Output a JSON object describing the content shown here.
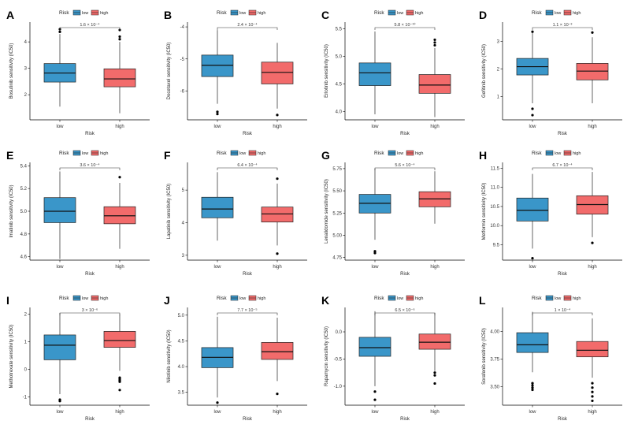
{
  "legend": {
    "title": "Risk",
    "entries": [
      "low",
      "high"
    ]
  },
  "colors": {
    "low": "#3a96c9",
    "high": "#f26b6b",
    "axis": "#000000",
    "outlier": "#000000"
  },
  "chart_data": [
    {
      "type": "boxplot",
      "letter": "A",
      "ylabel": "Bosutinib sensitivity (IC50)",
      "xlabel": "Risk",
      "categories": [
        "low",
        "high"
      ],
      "yticks": [
        2,
        3,
        4
      ],
      "ylim": [
        1.05,
        4.75
      ],
      "pvalue": "1.6 × 10⁻⁴",
      "boxes": [
        {
          "group": "low",
          "q1": 2.48,
          "median": 2.82,
          "q3": 3.18,
          "whisker_low": 1.55,
          "whisker_high": 4.3,
          "outliers": [
            4.38,
            4.48
          ]
        },
        {
          "group": "high",
          "q1": 2.3,
          "median": 2.6,
          "q3": 2.98,
          "whisker_low": 1.3,
          "whisker_high": 4.0,
          "outliers": [
            4.1,
            4.2,
            4.45
          ]
        }
      ]
    },
    {
      "type": "boxplot",
      "letter": "B",
      "ylabel": "Docetaxel sensitivity (IC50)",
      "xlabel": "Risk",
      "categories": [
        "low",
        "high"
      ],
      "yticks": [
        -6,
        -5,
        -4
      ],
      "ylim": [
        -6.9,
        -3.85
      ],
      "pvalue": "2.4 × 10⁻⁴",
      "boxes": [
        {
          "group": "low",
          "q1": -5.55,
          "median": -5.2,
          "q3": -4.88,
          "whisker_low": -6.4,
          "whisker_high": -4.1,
          "outliers": [
            -6.65,
            -6.72
          ]
        },
        {
          "group": "high",
          "q1": -5.78,
          "median": -5.42,
          "q3": -5.1,
          "whisker_low": -6.55,
          "whisker_high": -4.5,
          "outliers": [
            -6.75
          ]
        }
      ]
    },
    {
      "type": "boxplot",
      "letter": "C",
      "ylabel": "Erlotinib sensitivity (IC50)",
      "xlabel": "Risk",
      "categories": [
        "low",
        "high"
      ],
      "yticks": [
        4.0,
        4.5,
        5.0,
        5.5
      ],
      "ylim": [
        3.85,
        5.62
      ],
      "pvalue": "5.8 × 10⁻¹⁰",
      "boxes": [
        {
          "group": "low",
          "q1": 4.47,
          "median": 4.7,
          "q3": 4.88,
          "whisker_low": 3.95,
          "whisker_high": 5.45,
          "outliers": []
        },
        {
          "group": "high",
          "q1": 4.33,
          "median": 4.48,
          "q3": 4.67,
          "whisker_low": 3.9,
          "whisker_high": 5.15,
          "outliers": [
            5.2,
            5.25,
            5.3
          ]
        }
      ]
    },
    {
      "type": "boxplot",
      "letter": "D",
      "ylabel": "Gefitinib sensitivity (IC50)",
      "xlabel": "Risk",
      "categories": [
        "low",
        "high"
      ],
      "yticks": [
        1,
        2,
        3
      ],
      "ylim": [
        0.15,
        3.7
      ],
      "pvalue": "1.1 × 10⁻³",
      "boxes": [
        {
          "group": "low",
          "q1": 1.78,
          "median": 2.08,
          "q3": 2.38,
          "whisker_low": 0.75,
          "whisker_high": 3.3,
          "outliers": [
            0.55,
            0.32,
            3.35
          ]
        },
        {
          "group": "high",
          "q1": 1.6,
          "median": 1.92,
          "q3": 2.2,
          "whisker_low": 0.75,
          "whisker_high": 3.15,
          "outliers": [
            3.32
          ]
        }
      ]
    },
    {
      "type": "boxplot",
      "letter": "E",
      "ylabel": "Imatinib sensitivity (IC50)",
      "xlabel": "Risk",
      "categories": [
        "low",
        "high"
      ],
      "yticks": [
        4.6,
        4.8,
        5.0,
        5.2,
        5.4
      ],
      "ylim": [
        4.57,
        5.43
      ],
      "pvalue": "3.6 × 10⁻⁴",
      "boxes": [
        {
          "group": "low",
          "q1": 4.9,
          "median": 5.0,
          "q3": 5.12,
          "whisker_low": 4.58,
          "whisker_high": 5.35,
          "outliers": []
        },
        {
          "group": "high",
          "q1": 4.89,
          "median": 4.96,
          "q3": 5.04,
          "whisker_low": 4.67,
          "whisker_high": 5.25,
          "outliers": [
            5.3
          ]
        }
      ]
    },
    {
      "type": "boxplot",
      "letter": "F",
      "ylabel": "Lapatinib sensitivity (IC50)",
      "xlabel": "Risk",
      "categories": [
        "low",
        "high"
      ],
      "yticks": [
        3,
        4,
        5
      ],
      "ylim": [
        2.85,
        5.85
      ],
      "pvalue": "6.4 × 10⁻⁴",
      "boxes": [
        {
          "group": "low",
          "q1": 4.15,
          "median": 4.42,
          "q3": 4.78,
          "whisker_low": 3.45,
          "whisker_high": 5.55,
          "outliers": []
        },
        {
          "group": "high",
          "q1": 4.02,
          "median": 4.27,
          "q3": 4.48,
          "whisker_low": 3.3,
          "whisker_high": 5.2,
          "outliers": [
            5.35,
            3.05
          ]
        }
      ]
    },
    {
      "type": "boxplot",
      "letter": "G",
      "ylabel": "Lenalidomide sensitivity (IC50)",
      "xlabel": "Risk",
      "categories": [
        "low",
        "high"
      ],
      "yticks": [
        4.75,
        5.0,
        5.25,
        5.5,
        5.75
      ],
      "ylim": [
        4.72,
        5.82
      ],
      "pvalue": "5.6 × 10⁻⁴",
      "boxes": [
        {
          "group": "low",
          "q1": 5.25,
          "median": 5.36,
          "q3": 5.46,
          "whisker_low": 4.95,
          "whisker_high": 5.75,
          "outliers": [
            4.8,
            4.82
          ]
        },
        {
          "group": "high",
          "q1": 5.32,
          "median": 5.41,
          "q3": 5.49,
          "whisker_low": 5.13,
          "whisker_high": 5.72,
          "outliers": []
        }
      ]
    },
    {
      "type": "boxplot",
      "letter": "H",
      "ylabel": "Metformin sensitivity (IC50)",
      "xlabel": "Risk",
      "categories": [
        "low",
        "high"
      ],
      "yticks": [
        9.5,
        10.0,
        10.5,
        11.0,
        11.5
      ],
      "ylim": [
        9.1,
        11.65
      ],
      "pvalue": "6.7 × 10⁻⁴",
      "boxes": [
        {
          "group": "low",
          "q1": 10.12,
          "median": 10.4,
          "q3": 10.72,
          "whisker_low": 9.4,
          "whisker_high": 11.35,
          "outliers": [
            9.15
          ]
        },
        {
          "group": "high",
          "q1": 10.3,
          "median": 10.55,
          "q3": 10.78,
          "whisker_low": 9.7,
          "whisker_high": 11.4,
          "outliers": [
            9.55
          ]
        }
      ]
    },
    {
      "type": "boxplot",
      "letter": "I",
      "ylabel": "Methotrexate sensitivity (IC50)",
      "xlabel": "Risk",
      "categories": [
        "low",
        "high"
      ],
      "yticks": [
        -1,
        0,
        1,
        2
      ],
      "ylim": [
        -1.3,
        2.25
      ],
      "pvalue": "3 × 10⁻⁶",
      "boxes": [
        {
          "group": "low",
          "q1": 0.35,
          "median": 0.88,
          "q3": 1.25,
          "whisker_low": -0.9,
          "whisker_high": 2.05,
          "outliers": [
            -1.1,
            -1.15
          ]
        },
        {
          "group": "high",
          "q1": 0.8,
          "median": 1.05,
          "q3": 1.38,
          "whisker_low": -0.05,
          "whisker_high": 2.0,
          "outliers": [
            -0.3,
            -0.35,
            -0.4,
            -0.45,
            -0.75
          ]
        }
      ]
    },
    {
      "type": "boxplot",
      "letter": "J",
      "ylabel": "Nilotinib sensitivity (IC50)",
      "xlabel": "Risk",
      "categories": [
        "low",
        "high"
      ],
      "yticks": [
        3.5,
        4.0,
        4.5,
        5.0
      ],
      "ylim": [
        3.25,
        5.15
      ],
      "pvalue": "7.7 × 10⁻⁵",
      "boxes": [
        {
          "group": "low",
          "q1": 3.98,
          "median": 4.18,
          "q3": 4.37,
          "whisker_low": 3.4,
          "whisker_high": 4.97,
          "outliers": [
            3.3
          ]
        },
        {
          "group": "high",
          "q1": 4.14,
          "median": 4.29,
          "q3": 4.47,
          "whisker_low": 3.72,
          "whisker_high": 4.95,
          "outliers": [
            3.47
          ]
        }
      ]
    },
    {
      "type": "boxplot",
      "letter": "K",
      "ylabel": "Rapamycin sensitivity (IC50)",
      "xlabel": "Risk",
      "categories": [
        "low",
        "high"
      ],
      "yticks": [
        -1.0,
        -0.5,
        0.0
      ],
      "ylim": [
        -1.35,
        0.45
      ],
      "pvalue": "6.5 × 10⁻⁶",
      "boxes": [
        {
          "group": "low",
          "q1": -0.45,
          "median": -0.29,
          "q3": -0.1,
          "whisker_low": -1.0,
          "whisker_high": 0.38,
          "outliers": [
            -1.1,
            -1.25
          ]
        },
        {
          "group": "high",
          "q1": -0.32,
          "median": -0.19,
          "q3": -0.04,
          "whisker_low": -0.72,
          "whisker_high": 0.35,
          "outliers": [
            -0.75,
            -0.8,
            -0.95
          ]
        }
      ]
    },
    {
      "type": "boxplot",
      "letter": "L",
      "ylabel": "Sorafenib sensitivity (IC50)",
      "xlabel": "Risk",
      "categories": [
        "low",
        "high"
      ],
      "yticks": [
        3.5,
        3.75,
        4.0
      ],
      "ylim": [
        3.33,
        4.22
      ],
      "pvalue": "1 × 10⁻⁴",
      "boxes": [
        {
          "group": "low",
          "q1": 3.81,
          "median": 3.88,
          "q3": 3.99,
          "whisker_low": 3.63,
          "whisker_high": 4.18,
          "outliers": [
            3.47,
            3.49,
            3.51,
            3.53
          ]
        },
        {
          "group": "high",
          "q1": 3.77,
          "median": 3.83,
          "q3": 3.91,
          "whisker_low": 3.58,
          "whisker_high": 4.12,
          "outliers": [
            3.37,
            3.41,
            3.45,
            3.49,
            3.53
          ]
        }
      ]
    }
  ]
}
